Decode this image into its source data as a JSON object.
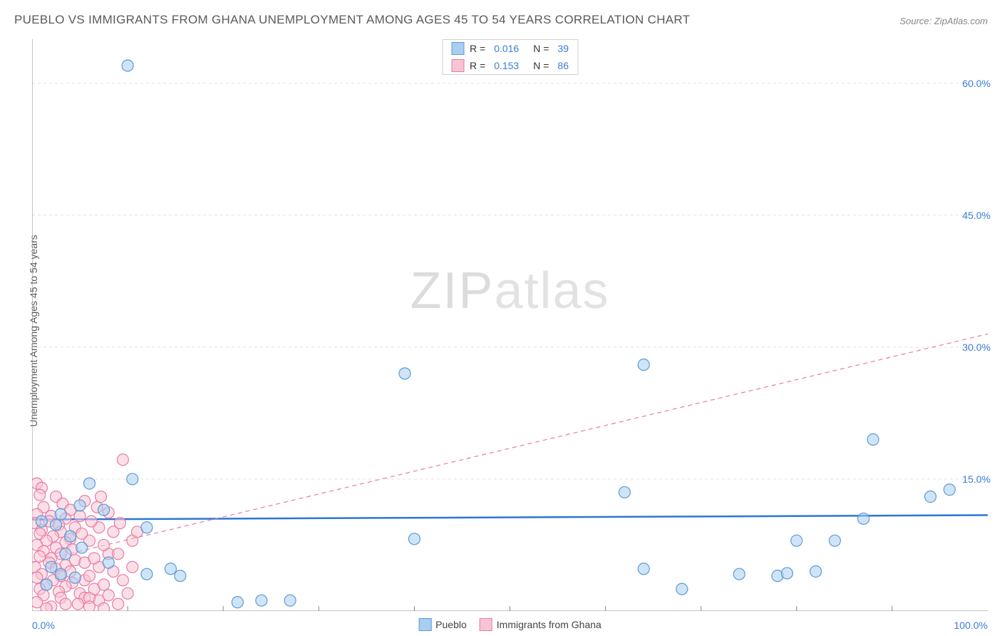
{
  "title": "PUEBLO VS IMMIGRANTS FROM GHANA UNEMPLOYMENT AMONG AGES 45 TO 54 YEARS CORRELATION CHART",
  "source": "Source: ZipAtlas.com",
  "y_axis_label": "Unemployment Among Ages 45 to 54 years",
  "watermark_bold": "ZIP",
  "watermark_thin": "atlas",
  "chart": {
    "type": "scatter",
    "xlim": [
      0,
      100
    ],
    "ylim": [
      0,
      65
    ],
    "x_ticks": [
      0,
      100
    ],
    "x_tick_labels": [
      "0.0%",
      "100.0%"
    ],
    "y_ticks": [
      15,
      30,
      45,
      60
    ],
    "y_tick_labels": [
      "15.0%",
      "30.0%",
      "45.0%",
      "60.0%"
    ],
    "x_minor_ticks": [
      10,
      20,
      30,
      40,
      50,
      60,
      70,
      80,
      90
    ],
    "grid_color": "#e0e0e0",
    "axis_color": "#888888",
    "background_color": "#ffffff",
    "marker_radius": 8,
    "marker_stroke_width": 1.2,
    "series": [
      {
        "name": "Pueblo",
        "fill_color": "#a8cef0",
        "stroke_color": "#5b9bd5",
        "fill_opacity": 0.55,
        "r_value": "0.016",
        "n_value": "39",
        "trend": {
          "y_at_x0": 10.4,
          "y_at_x100": 10.9,
          "color": "#2e75d6",
          "width": 2.5,
          "dash": "none"
        },
        "points": [
          [
            10,
            62
          ],
          [
            39,
            27
          ],
          [
            64,
            28
          ],
          [
            88,
            19.5
          ],
          [
            94,
            13
          ],
          [
            96,
            13.8
          ],
          [
            87,
            10.5
          ],
          [
            80,
            8
          ],
          [
            84,
            8
          ],
          [
            78,
            4
          ],
          [
            74,
            4.2
          ],
          [
            79,
            4.3
          ],
          [
            82,
            4.5
          ],
          [
            68,
            2.5
          ],
          [
            64,
            4.8
          ],
          [
            62,
            13.5
          ],
          [
            40,
            8.2
          ],
          [
            21.5,
            1
          ],
          [
            24,
            1.2
          ],
          [
            27,
            1.2
          ],
          [
            15.5,
            4
          ],
          [
            12,
            4.2
          ],
          [
            14.5,
            4.8
          ],
          [
            10.5,
            15
          ],
          [
            12,
            9.5
          ],
          [
            7.5,
            11.5
          ],
          [
            5,
            12
          ],
          [
            3,
            11
          ],
          [
            6,
            14.5
          ],
          [
            2.5,
            9.8
          ],
          [
            4,
            8.5
          ],
          [
            1,
            10.2
          ],
          [
            3.5,
            6.5
          ],
          [
            5.2,
            7.2
          ],
          [
            2,
            5
          ],
          [
            3,
            4.2
          ],
          [
            4.5,
            3.8
          ],
          [
            1.5,
            3
          ],
          [
            8,
            5.5
          ]
        ]
      },
      {
        "name": "Immigrants from Ghana",
        "fill_color": "#f8c4d4",
        "stroke_color": "#e87ba4",
        "fill_opacity": 0.55,
        "r_value": "0.153",
        "n_value": "86",
        "trend": {
          "y_at_x0": 5.5,
          "y_at_x100": 31.5,
          "color": "#e87ba4",
          "width": 1.2,
          "dash": "6,5"
        },
        "points": [
          [
            9.5,
            17.2
          ],
          [
            0.5,
            14.5
          ],
          [
            1,
            14
          ],
          [
            0.8,
            13.2
          ],
          [
            2.5,
            13
          ],
          [
            3.2,
            12.2
          ],
          [
            1.2,
            11.8
          ],
          [
            4,
            11.5
          ],
          [
            0.5,
            11
          ],
          [
            2,
            10.8
          ],
          [
            3.5,
            10.5
          ],
          [
            1.8,
            10.2
          ],
          [
            0.3,
            10
          ],
          [
            2.8,
            9.8
          ],
          [
            4.5,
            9.5
          ],
          [
            1,
            9.2
          ],
          [
            3,
            9
          ],
          [
            0.8,
            8.8
          ],
          [
            2.2,
            8.5
          ],
          [
            4,
            8.2
          ],
          [
            1.5,
            8
          ],
          [
            3.5,
            7.8
          ],
          [
            0.5,
            7.5
          ],
          [
            2.5,
            7.2
          ],
          [
            4.2,
            7
          ],
          [
            1.2,
            6.8
          ],
          [
            3,
            6.5
          ],
          [
            0.8,
            6.2
          ],
          [
            2,
            6
          ],
          [
            4.5,
            5.8
          ],
          [
            1.8,
            5.5
          ],
          [
            3.5,
            5.2
          ],
          [
            0.3,
            5
          ],
          [
            2.5,
            4.8
          ],
          [
            4,
            4.5
          ],
          [
            1,
            4.2
          ],
          [
            3,
            4
          ],
          [
            0.5,
            3.8
          ],
          [
            2.2,
            3.5
          ],
          [
            4.2,
            3.2
          ],
          [
            1.5,
            3
          ],
          [
            3.5,
            2.8
          ],
          [
            0.8,
            2.5
          ],
          [
            2.8,
            2.2
          ],
          [
            5,
            2
          ],
          [
            1.2,
            1.8
          ],
          [
            3,
            1.5
          ],
          [
            5.5,
            1.5
          ],
          [
            7,
            1.2
          ],
          [
            6,
            1.5
          ],
          [
            8,
            1.8
          ],
          [
            6.5,
            2.5
          ],
          [
            5.5,
            3.5
          ],
          [
            7.5,
            3
          ],
          [
            6,
            4
          ],
          [
            8.5,
            4.5
          ],
          [
            7,
            5
          ],
          [
            5.5,
            5.5
          ],
          [
            6.5,
            6
          ],
          [
            8,
            6.5
          ],
          [
            7.5,
            7.5
          ],
          [
            6,
            8
          ],
          [
            5.2,
            8.8
          ],
          [
            8.5,
            9
          ],
          [
            7,
            9.5
          ],
          [
            6.2,
            10.2
          ],
          [
            5,
            10.8
          ],
          [
            8,
            11.2
          ],
          [
            6.8,
            11.8
          ],
          [
            5.5,
            12.5
          ],
          [
            7.2,
            13
          ],
          [
            4.8,
            0.8
          ],
          [
            2,
            0.5
          ],
          [
            3.5,
            0.8
          ],
          [
            6,
            0.5
          ],
          [
            7.5,
            0.3
          ],
          [
            9,
            0.8
          ],
          [
            1.5,
            0.3
          ],
          [
            0.5,
            1
          ],
          [
            10,
            2
          ],
          [
            9.5,
            3.5
          ],
          [
            10.5,
            5
          ],
          [
            9,
            6.5
          ],
          [
            10.5,
            8
          ],
          [
            9.2,
            10
          ],
          [
            11,
            9
          ]
        ]
      }
    ],
    "legend_bottom": [
      {
        "label": "Pueblo",
        "fill": "#a8cef0",
        "stroke": "#5b9bd5"
      },
      {
        "label": "Immigrants from Ghana",
        "fill": "#f8c4d4",
        "stroke": "#e87ba4"
      }
    ]
  }
}
